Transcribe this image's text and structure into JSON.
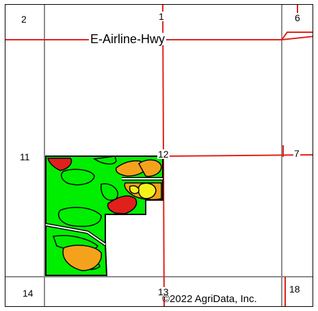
{
  "map": {
    "road_name": "E-Airline-Hwy",
    "copyright": "©2022 AgriData, Inc.",
    "sections": [
      "2",
      "1",
      "6",
      "11",
      "12",
      "7",
      "14",
      "13",
      "18"
    ],
    "colors": {
      "road": "#e0201b",
      "section_line": "#8c8c8c",
      "field_base": "#00ee00",
      "soil_high": "#e0201b",
      "soil_mid": "#f4a21b",
      "soil_low": "#f5f21b",
      "outline": "#000000"
    },
    "icons": {
      "field-polygon": "polygon",
      "soil-zone": "blob"
    }
  }
}
